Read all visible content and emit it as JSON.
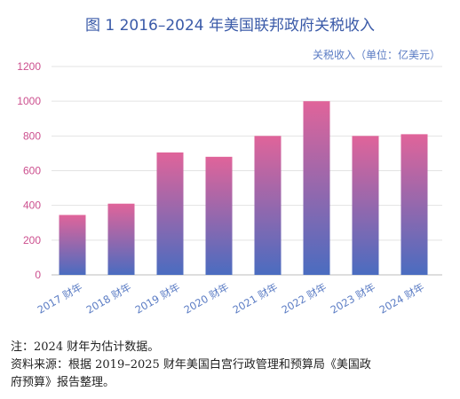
{
  "chart_data": {
    "type": "bar",
    "title": "图 1 2016–2024 年美国联邦政府关税收入",
    "ylabel": "关税收入（单位：亿美元）",
    "xlabel": "",
    "categories": [
      "2017 财年",
      "2018 财年",
      "2019 财年",
      "2020 财年",
      "2021 财年",
      "2022 财年",
      "2023 财年",
      "2024 财年"
    ],
    "values": [
      345,
      410,
      705,
      680,
      800,
      1000,
      800,
      810
    ],
    "ylim": [
      0,
      1200
    ],
    "yticks": [
      0,
      200,
      400,
      600,
      800,
      1000,
      1200
    ],
    "grid": true,
    "bar_gradient": {
      "top": "#e0649a",
      "bottom": "#4a6cc0"
    },
    "axis_color": "#cc4f8e",
    "xtick_color": "#5b7cc4"
  },
  "notes": {
    "line1": "注：2024 财年为估计数据。",
    "line2": "资料来源：根据 2019–2025 财年美国白宫行政管理和预算局《美国政",
    "line3": "府预算》报告整理。"
  }
}
